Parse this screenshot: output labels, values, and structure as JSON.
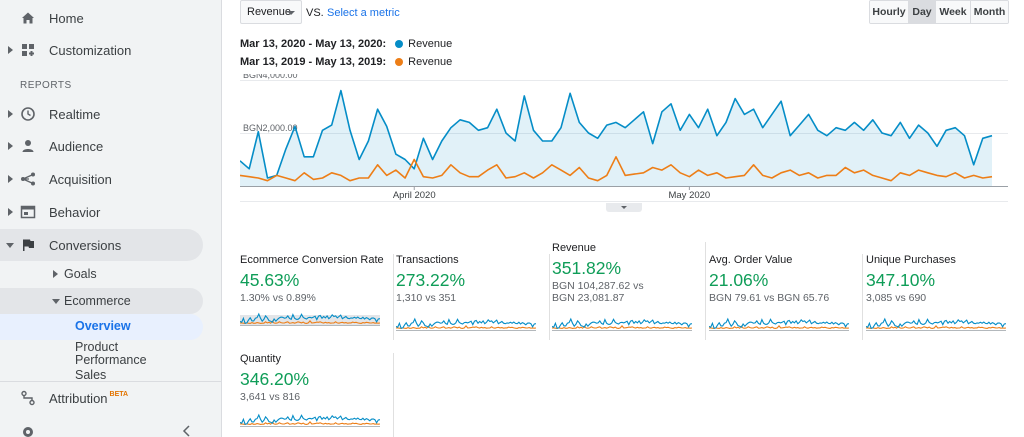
{
  "sidebar": {
    "items": [
      {
        "label": "Home",
        "icon": "home-icon"
      },
      {
        "label": "Customization",
        "icon": "dashboard-icon"
      },
      {
        "label": "Realtime",
        "icon": "clock-icon"
      },
      {
        "label": "Audience",
        "icon": "person-icon"
      },
      {
        "label": "Acquisition",
        "icon": "acquisition-icon"
      },
      {
        "label": "Behavior",
        "icon": "behavior-icon"
      },
      {
        "label": "Conversions",
        "icon": "flag-icon"
      },
      {
        "label": "Attribution",
        "icon": "attribution-icon",
        "badge": "BETA"
      }
    ],
    "section_label": "REPORTS",
    "sub_items": {
      "goals": "Goals",
      "ecommerce": "Ecommerce",
      "overview": "Overview",
      "product_performance_l1": "Product",
      "product_performance_l2": "Performance",
      "sales": "Sales"
    },
    "collapse_icon": "chevron-left-icon",
    "settings_icon": "gear-icon"
  },
  "toolbar": {
    "metric_select": "Revenue",
    "vs_label": "VS.",
    "select_metric_link": "Select a metric",
    "time_buttons": [
      "Hourly",
      "Day",
      "Week",
      "Month"
    ],
    "selected_time": "Day"
  },
  "legend": [
    {
      "range": "Mar 13, 2020 - May 13, 2020:",
      "metric": "Revenue",
      "color": "#058dc7"
    },
    {
      "range": "Mar 13, 2019 - May 13, 2019:",
      "metric": "Revenue",
      "color": "#ed7e17"
    }
  ],
  "colors": {
    "current": "#058dc7",
    "previous": "#ed7e17",
    "positive": "#0f9d58",
    "link": "#1a73e8"
  },
  "chart_data": {
    "type": "line",
    "y_ticks": [
      "BGN4,000.00",
      "BGN2,000.00"
    ],
    "ylim": [
      0,
      4000
    ],
    "x_ticks": [
      {
        "label": "April 2020",
        "index": 19
      },
      {
        "label": "May 2020",
        "index": 49
      }
    ],
    "series": [
      {
        "name": "Mar 13, 2020 - May 13, 2020",
        "color": "#058dc7",
        "values": [
          950,
          650,
          2050,
          300,
          400,
          1400,
          2250,
          1100,
          1100,
          2100,
          2300,
          3600,
          2100,
          1000,
          1700,
          2900,
          2250,
          1200,
          1000,
          650,
          1800,
          1000,
          1700,
          2200,
          2500,
          2400,
          2100,
          2200,
          2900,
          2000,
          1700,
          3400,
          2100,
          1700,
          1700,
          2200,
          3500,
          2400,
          2000,
          1800,
          2300,
          2400,
          2200,
          2500,
          2800,
          1600,
          2800,
          3100,
          2100,
          2700,
          2200,
          2900,
          1900,
          2400,
          3300,
          2700,
          2900,
          2200,
          2700,
          3200,
          1900,
          2300,
          2700,
          2100,
          1900,
          2200,
          2100,
          2400,
          2100,
          2500,
          2000,
          1900,
          2400,
          1800,
          2300,
          2000,
          1500,
          2100,
          2200,
          1900,
          800,
          1800,
          1900
        ]
      },
      {
        "name": "Mar 13, 2019 - May 13, 2019",
        "color": "#ed7e17",
        "values": [
          400,
          350,
          300,
          200,
          400,
          300,
          200,
          500,
          250,
          300,
          500,
          400,
          200,
          300,
          300,
          800,
          400,
          600,
          300,
          1000,
          350,
          300,
          400,
          800,
          500,
          350,
          350,
          600,
          800,
          300,
          350,
          500,
          300,
          500,
          800,
          600,
          400,
          700,
          300,
          200,
          400,
          1100,
          400,
          450,
          500,
          700,
          600,
          800,
          500,
          350,
          600,
          400,
          500,
          300,
          350,
          400,
          800,
          400,
          300,
          500,
          600,
          400,
          500,
          300,
          400,
          400,
          700,
          500,
          600,
          400,
          300,
          200,
          500,
          400,
          600,
          500,
          400,
          350,
          500,
          300,
          400,
          300,
          350
        ]
      }
    ]
  },
  "scorecards": [
    {
      "title": "Ecommerce Conversion Rate",
      "value": "45.63%",
      "sub1": "1.30% vs 0.89%",
      "sub2": ""
    },
    {
      "title": "Transactions",
      "value": "273.22%",
      "sub1": "1,310 vs 351",
      "sub2": ""
    },
    {
      "title": "Revenue",
      "value": "351.82%",
      "sub1": "BGN 104,287.62 vs",
      "sub2": "BGN 23,081.87"
    },
    {
      "title": "Avg. Order Value",
      "value": "21.06%",
      "sub1": "BGN 79.61 vs BGN 65.76",
      "sub2": ""
    },
    {
      "title": "Unique Purchases",
      "value": "347.10%",
      "sub1": "3,085 vs 690",
      "sub2": ""
    },
    {
      "title": "Quantity",
      "value": "346.20%",
      "sub1": "3,641 vs 816",
      "sub2": ""
    }
  ]
}
